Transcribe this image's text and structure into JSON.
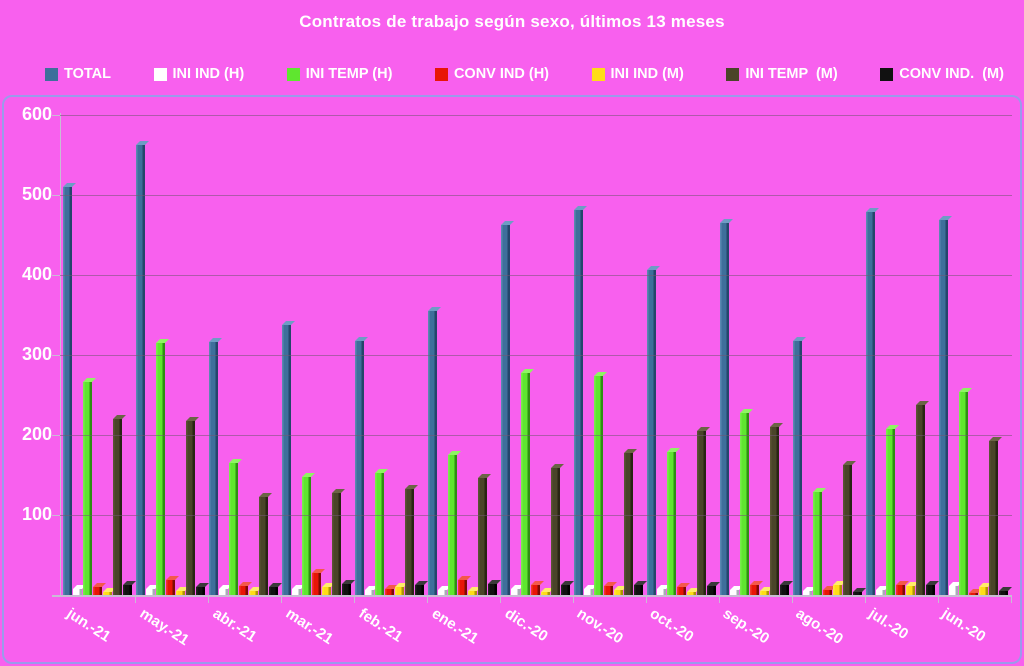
{
  "title": "Contratos de trabajo según sexo, últimos 13 meses",
  "colors": {
    "background": "#F860EE",
    "plot_border": "#9B9BEA",
    "grid_line": "#73557373",
    "axis_line": "#C9BCD4",
    "text": "#FFFFFF"
  },
  "chart_data": {
    "type": "bar",
    "title": "Contratos de trabajo según sexo, últimos 13 meses",
    "xlabel": "",
    "ylabel": "",
    "ylim": [
      0,
      600
    ],
    "yticks": [
      600,
      500,
      400,
      300,
      200,
      100
    ],
    "grid": true,
    "legend_position": "top",
    "categories": [
      "jun.-21",
      "may.-21",
      "abr.-21",
      "mar.-21",
      "feb.-21",
      "ene.-21",
      "dic.-20",
      "nov.-20",
      "oct.-20",
      "sep.-20",
      "ago.-20",
      "jul.-20",
      "jun.-20"
    ],
    "series": [
      {
        "name": "TOTAL",
        "color": "#3E6F9B",
        "side_color": "#24466B",
        "top_color": "#6E9CC4",
        "light_color": "#5988B0",
        "values": [
          510,
          563,
          316,
          338,
          317,
          355,
          463,
          481,
          406,
          465,
          317,
          479,
          469
        ]
      },
      {
        "name": "INI IND (H)",
        "color": "#FFFFFF",
        "side_color": "#A8ACB5",
        "top_color": "#FFFFFF",
        "light_color": "#FFFFFF",
        "values": [
          7,
          7,
          7,
          8,
          6,
          6,
          8,
          8,
          8,
          6,
          5,
          6,
          11
        ]
      },
      {
        "name": "INI TEMP (H)",
        "color": "#5FE62F",
        "side_color": "#2F8F13",
        "top_color": "#8FF463",
        "light_color": "#79EC4C",
        "values": [
          266,
          315,
          165,
          148,
          153,
          175,
          278,
          274,
          179,
          227,
          129,
          208,
          254
        ]
      },
      {
        "name": "CONV IND (H)",
        "color": "#E81507",
        "side_color": "#7E0A03",
        "top_color": "#F4584B",
        "light_color": "#EE3A2D",
        "values": [
          10,
          19,
          11,
          27,
          8,
          19,
          13,
          11,
          10,
          13,
          6,
          13,
          2
        ]
      },
      {
        "name": "INI IND (M)",
        "color": "#FFDD17",
        "side_color": "#AE9406",
        "top_color": "#FFEC6B",
        "light_color": "#FFE440",
        "values": [
          4,
          5,
          5,
          10,
          10,
          5,
          4,
          6,
          4,
          5,
          13,
          11,
          10
        ]
      },
      {
        "name": "INI TEMP  (M)",
        "color": "#4A4429",
        "side_color": "#292514",
        "top_color": "#6B6445",
        "light_color": "#5A5334",
        "values": [
          220,
          218,
          123,
          128,
          132,
          146,
          159,
          178,
          205,
          210,
          163,
          237,
          192
        ]
      },
      {
        "name": "CONV IND.  (M)",
        "color": "#111111",
        "side_color": "#000000",
        "top_color": "#3A3A3A",
        "light_color": "#222222",
        "values": [
          12,
          10,
          10,
          14,
          13,
          14,
          12,
          13,
          11,
          12,
          4,
          12,
          5
        ]
      }
    ]
  }
}
